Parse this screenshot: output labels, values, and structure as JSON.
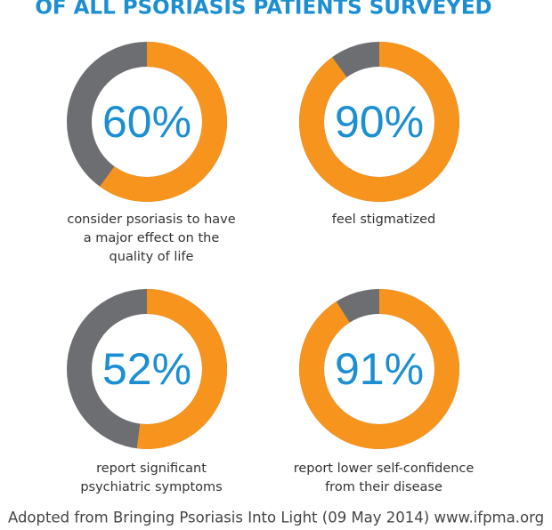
{
  "title": "OF ALL PSORIASIS PATIENTS SURVEYED",
  "chart_data": [
    {
      "type": "donut",
      "values": [
        60
      ],
      "value_labels": [
        "60%"
      ],
      "ylim": [
        0,
        100
      ],
      "color": "#f7941d",
      "track_color": "#6d6e71",
      "caption": [
        "consider psoriasis to have",
        "a major effect on the",
        "quality of life"
      ]
    },
    {
      "type": "donut",
      "values": [
        90
      ],
      "value_labels": [
        "90%"
      ],
      "ylim": [
        0,
        100
      ],
      "color": "#f7941d",
      "track_color": "#6d6e71",
      "caption": [
        "feel stigmatized"
      ]
    },
    {
      "type": "donut",
      "values": [
        52
      ],
      "value_labels": [
        "52%"
      ],
      "ylim": [
        0,
        100
      ],
      "color": "#f7941d",
      "track_color": "#6d6e71",
      "caption": [
        "report significant",
        "psychiatric symptoms"
      ]
    },
    {
      "type": "donut",
      "values": [
        91
      ],
      "value_labels": [
        "91%"
      ],
      "ylim": [
        0,
        100
      ],
      "color": "#f7941d",
      "track_color": "#6d6e71",
      "caption": [
        "report lower self-confidence",
        "from their disease"
      ]
    }
  ],
  "source": "Adopted from Bringing Psoriasis Into Light (09 May 2014) www.ifpma.org"
}
